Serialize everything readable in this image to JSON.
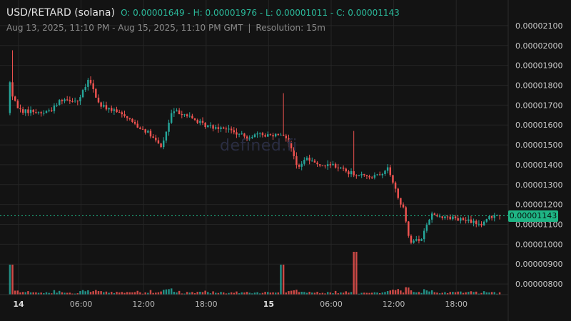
{
  "header": {
    "pair": "USD/RETARD (solana)",
    "ohlc": "O: 0.00001649 - H: 0.00001976 - L: 0.00001011 - C: 0.00001143",
    "range": "Aug 13, 2025, 11:10 PM - Aug 15, 2025, 11:10 PM GMT",
    "separator": "|",
    "resolution": "Resolution: 15m"
  },
  "watermark": "defined.fi",
  "current_price_label": "0.00001143",
  "colors": {
    "background": "#131313",
    "grid": "#252525",
    "up": "#26a69a",
    "down": "#ef5350",
    "price_tag": "#1fb585"
  },
  "chart_data": {
    "type": "candlestick",
    "y_axis": {
      "min": 7.5e-06,
      "max": 2.15e-05,
      "ticks": [
        "0.00002100",
        "0.00002000",
        "0.00001900",
        "0.00001800",
        "0.00001700",
        "0.00001600",
        "0.00001500",
        "0.00001400",
        "0.00001300",
        "0.00001200",
        "0.00001100",
        "0.00001000",
        "0.00000900",
        "0.00000800"
      ],
      "side": "right"
    },
    "x_axis": {
      "ticks": [
        {
          "label": "14",
          "bold": true,
          "hour": 0
        },
        {
          "label": "06:00",
          "bold": false,
          "hour": 6
        },
        {
          "label": "12:00",
          "bold": false,
          "hour": 12
        },
        {
          "label": "18:00",
          "bold": false,
          "hour": 18
        },
        {
          "label": "15",
          "bold": true,
          "hour": 24
        },
        {
          "label": "06:00",
          "bold": false,
          "hour": 30
        },
        {
          "label": "12:00",
          "bold": false,
          "hour": 36
        },
        {
          "label": "18:00",
          "bold": false,
          "hour": 42
        }
      ]
    },
    "last_price": 1.143e-05,
    "path_hours": [
      -0.83,
      -0.6,
      -0.4,
      -0.2,
      0.5,
      1.5,
      2.5,
      3.5,
      4.3,
      5.0,
      6.0,
      7.0,
      8.0,
      9.0,
      9.8,
      10.5,
      11.5,
      12.5,
      13.2,
      13.7,
      14.0,
      15.0,
      16.0,
      17.0,
      18.0,
      19.0,
      20.0,
      21.0,
      22.0,
      23.0,
      24.5,
      25.5,
      26.0,
      27.0,
      28.0,
      29.0,
      30.5,
      32.0,
      33.0,
      34.5,
      35.2,
      35.7,
      36.3,
      36.8,
      37.2,
      37.8,
      38.8,
      39.8,
      41.0,
      42.0,
      43.0,
      44.0,
      44.8,
      45.3,
      46.0,
      46.17
    ],
    "path_prices": [
      1.66e-05,
      1.82e-05,
      1.75e-05,
      1.72e-05,
      1.67e-05,
      1.67e-05,
      1.66e-05,
      1.68e-05,
      1.73e-05,
      1.73e-05,
      1.72e-05,
      1.83e-05,
      1.7e-05,
      1.68e-05,
      1.66e-05,
      1.65e-05,
      1.6e-05,
      1.57e-05,
      1.53e-05,
      1.5e-05,
      1.49e-05,
      1.67e-05,
      1.66e-05,
      1.63e-05,
      1.6e-05,
      1.59e-05,
      1.59e-05,
      1.56e-05,
      1.54e-05,
      1.55e-05,
      1.55e-05,
      1.56e-05,
      1.54e-05,
      1.39e-05,
      1.43e-05,
      1.4e-05,
      1.4e-05,
      1.36e-05,
      1.35e-05,
      1.34e-05,
      1.35e-05,
      1.38e-05,
      1.3e-05,
      1.2e-05,
      1.19e-05,
      1.01e-05,
      1.02e-05,
      1.15e-05,
      1.14e-05,
      1.13e-05,
      1.12e-05,
      1.11e-05,
      1.1e-05,
      1.13e-05,
      1.15e-05,
      1.14e-05
    ],
    "spikes": [
      {
        "hour": -0.7,
        "high": 1.976e-05
      },
      {
        "hour": 25.4,
        "high": 1.76e-05
      },
      {
        "hour": 32.2,
        "high": 1.57e-05
      }
    ]
  }
}
